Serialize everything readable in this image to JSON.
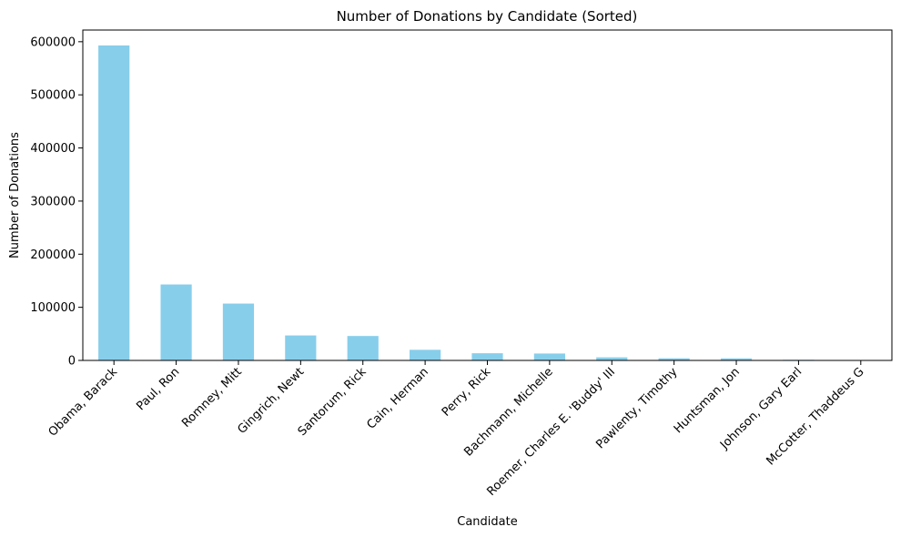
{
  "chart_data": {
    "type": "bar",
    "title": "Number of Donations by Candidate (Sorted)",
    "xlabel": "Candidate",
    "ylabel": "Number of Donations",
    "categories": [
      "Obama, Barack",
      "Paul, Ron",
      "Romney, Mitt",
      "Gingrich, Newt",
      "Santorum, Rick",
      "Cain, Herman",
      "Perry, Rick",
      "Bachmann, Michelle",
      "Roemer, Charles E. 'Buddy' III",
      "Pawlenty, Timothy",
      "Huntsman, Jon",
      "Johnson, Gary Earl",
      "McCotter, Thaddeus G"
    ],
    "values": [
      593000,
      143000,
      107000,
      47000,
      46000,
      20000,
      13500,
      13000,
      5800,
      4000,
      3900,
      1200,
      73
    ],
    "ylim": [
      0,
      622000
    ],
    "yticks": [
      0,
      100000,
      200000,
      300000,
      400000,
      500000,
      600000
    ],
    "ytick_labels": [
      "0",
      "100000",
      "200000",
      "300000",
      "400000",
      "500000",
      "600000"
    ],
    "bar_color": "#87ceeb",
    "grid": false
  }
}
